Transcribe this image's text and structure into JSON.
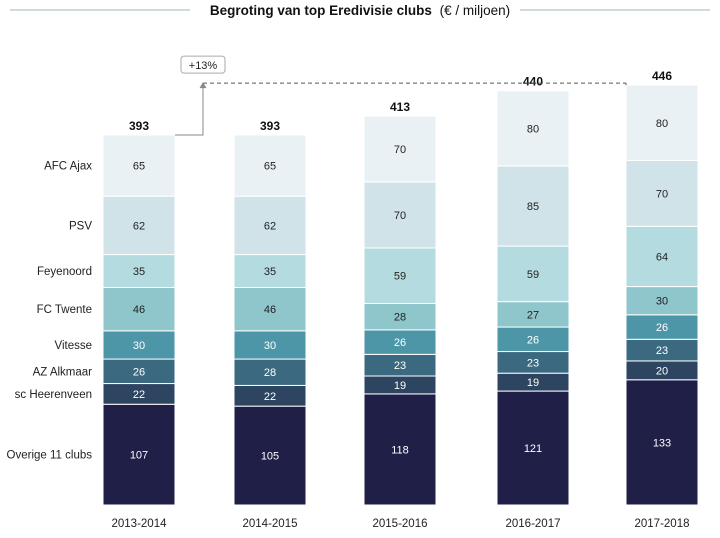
{
  "chart_data": {
    "type": "bar",
    "stacked": true,
    "title_main": "Begroting van top Eredivisie clubs",
    "title_unit": "(€ / miljoen)",
    "categories": [
      "2013-2014",
      "2014-2015",
      "2015-2016",
      "2016-2017",
      "2017-2018"
    ],
    "totals": [
      393,
      393,
      413,
      440,
      446
    ],
    "series": [
      {
        "name": "Overige 11 clubs",
        "values": [
          107,
          105,
          118,
          121,
          133
        ],
        "color": "#1f1f47",
        "text_color": "#ffffff"
      },
      {
        "name": "sc Heerenveen",
        "values": [
          22,
          22,
          19,
          19,
          20
        ],
        "color": "#2d4560",
        "text_color": "#ffffff"
      },
      {
        "name": "AZ Alkmaar",
        "values": [
          26,
          28,
          23,
          23,
          23
        ],
        "color": "#3b6a80",
        "text_color": "#ffffff"
      },
      {
        "name": "Vitesse",
        "values": [
          30,
          30,
          26,
          26,
          26
        ],
        "color": "#4d96a8",
        "text_color": "#ffffff"
      },
      {
        "name": "FC Twente",
        "values": [
          46,
          46,
          28,
          27,
          30
        ],
        "color": "#8ec6cc",
        "text_color": "#222222"
      },
      {
        "name": "Feyenoord",
        "values": [
          35,
          35,
          59,
          59,
          64
        ],
        "color": "#b4dce0",
        "text_color": "#222222"
      },
      {
        "name": "PSV",
        "values": [
          62,
          62,
          70,
          85,
          70
        ],
        "color": "#cfe3e8",
        "text_color": "#222222"
      },
      {
        "name": "AFC Ajax",
        "values": [
          65,
          65,
          70,
          80,
          80
        ],
        "color": "#eaf1f4",
        "text_color": "#222222"
      }
    ],
    "annotation": "+13%",
    "ylim": [
      0,
      446
    ],
    "legend": "left",
    "grid": false
  }
}
